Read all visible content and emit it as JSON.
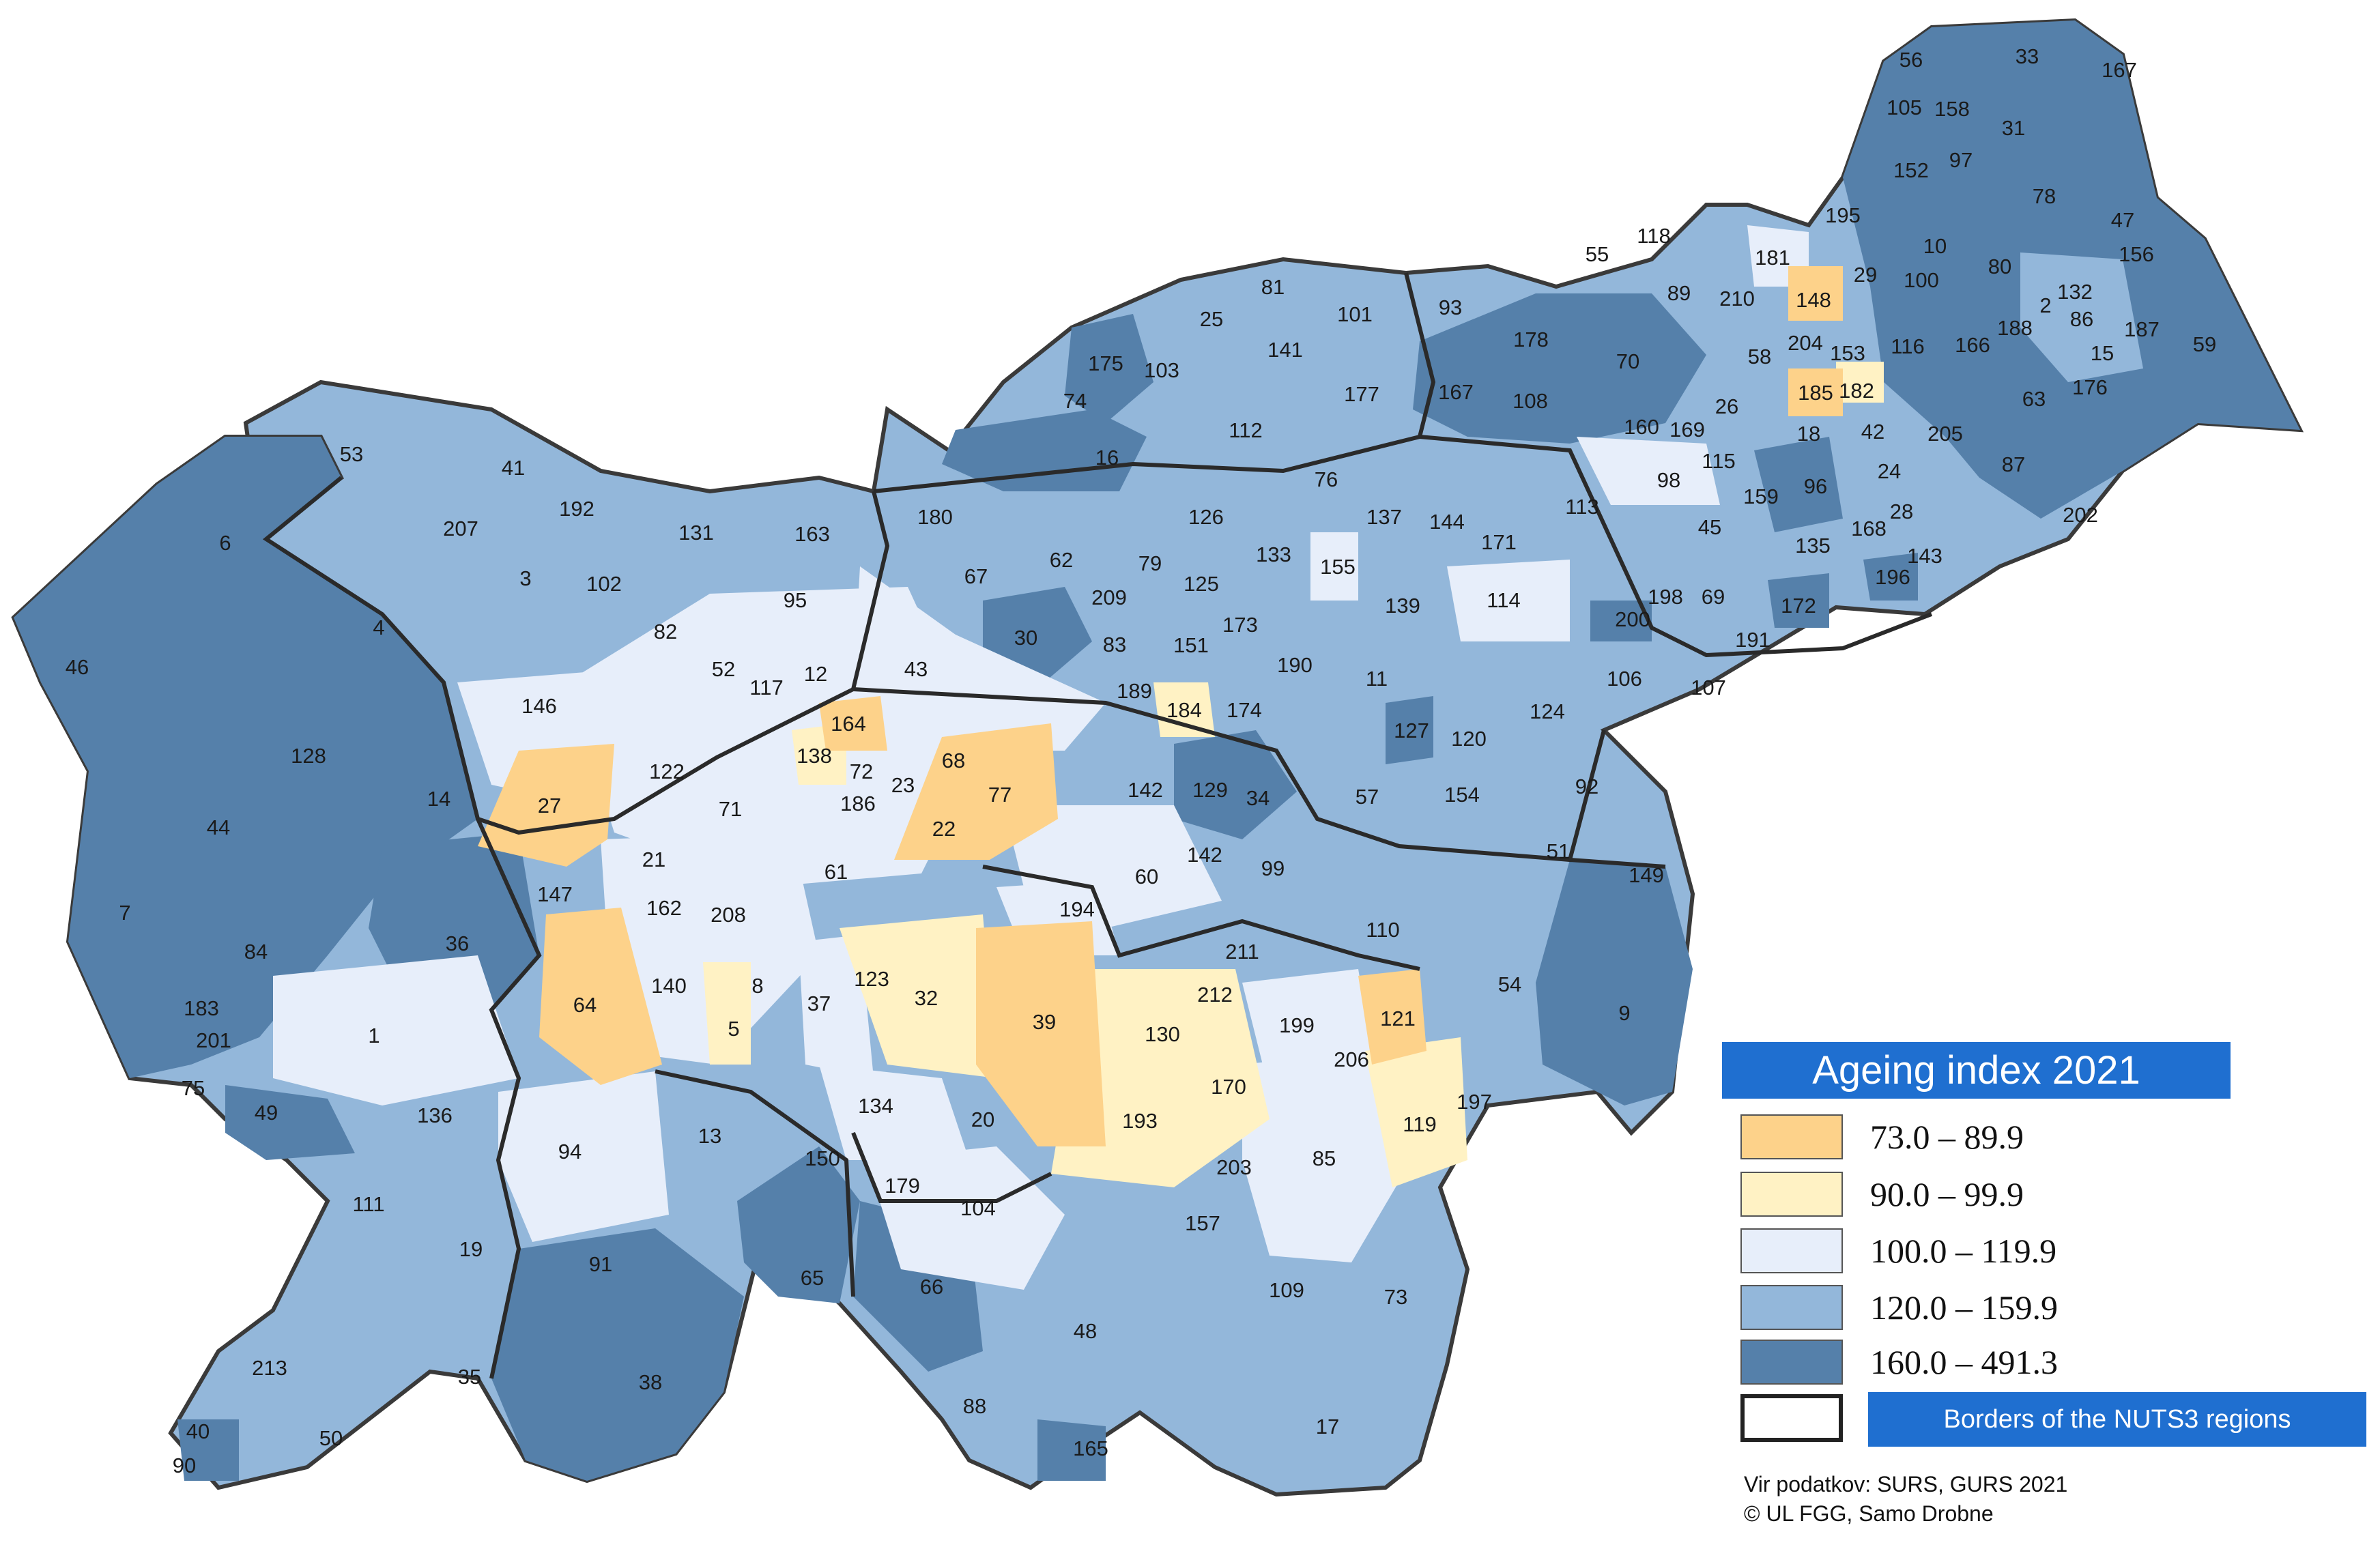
{
  "legend": {
    "title": "Ageing index 2021",
    "classes": [
      {
        "label": "73.0 – 89.9",
        "color": "#fdd28a"
      },
      {
        "label": "90.0 – 99.9",
        "color": "#fff2c4"
      },
      {
        "label": "100.0 – 119.9",
        "color": "#e7eefa"
      },
      {
        "label": "120.0 – 159.9",
        "color": "#93b7da"
      },
      {
        "label": "160.0 – 491.3",
        "color": "#5580aa"
      }
    ],
    "borders_label": "Borders of the NUTS3 regions"
  },
  "source": {
    "line1": "Vir podatkov: SURS, GURS 2021",
    "line2": "© UL FGG, Samo Drobne"
  },
  "map": {
    "country_color": "#93b7da",
    "border_color": "#3a3a3a",
    "municipalities": [
      {
        "id": "56",
        "cls": 4
      },
      {
        "id": "33",
        "cls": 4
      },
      {
        "id": "167",
        "cls": 4
      },
      {
        "id": "105",
        "cls": 3
      },
      {
        "id": "158",
        "cls": 4
      },
      {
        "id": "31",
        "cls": 4
      },
      {
        "id": "97",
        "cls": 4
      },
      {
        "id": "152",
        "cls": 4
      },
      {
        "id": "78",
        "cls": 4
      },
      {
        "id": "47",
        "cls": 4
      },
      {
        "id": "195",
        "cls": 3
      },
      {
        "id": "55",
        "cls": 3
      },
      {
        "id": "118",
        "cls": 3
      },
      {
        "id": "89",
        "cls": 4
      },
      {
        "id": "210",
        "cls": 3
      },
      {
        "id": "181",
        "cls": 2
      },
      {
        "id": "148",
        "cls": 0
      },
      {
        "id": "29",
        "cls": 4
      },
      {
        "id": "10",
        "cls": 4
      },
      {
        "id": "100",
        "cls": 4
      },
      {
        "id": "80",
        "cls": 4
      },
      {
        "id": "156",
        "cls": 4
      },
      {
        "id": "132",
        "cls": 3
      },
      {
        "id": "2",
        "cls": 3
      },
      {
        "id": "86",
        "cls": 3
      },
      {
        "id": "187",
        "cls": 4
      },
      {
        "id": "15",
        "cls": 3
      },
      {
        "id": "59",
        "cls": 4
      },
      {
        "id": "188",
        "cls": 4
      },
      {
        "id": "166",
        "cls": 4
      },
      {
        "id": "116",
        "cls": 3
      },
      {
        "id": "176",
        "cls": 3
      },
      {
        "id": "63",
        "cls": 4
      },
      {
        "id": "81",
        "cls": 3
      },
      {
        "id": "101",
        "cls": 3
      },
      {
        "id": "93",
        "cls": 4
      },
      {
        "id": "178",
        "cls": 4
      },
      {
        "id": "70",
        "cls": 4
      },
      {
        "id": "58",
        "cls": 3
      },
      {
        "id": "204",
        "cls": 3
      },
      {
        "id": "153",
        "cls": 2
      },
      {
        "id": "185",
        "cls": 0
      },
      {
        "id": "182",
        "cls": 1
      },
      {
        "id": "25",
        "cls": 3
      },
      {
        "id": "141",
        "cls": 3
      },
      {
        "id": "175",
        "cls": 4
      },
      {
        "id": "103",
        "cls": 3
      },
      {
        "id": "74",
        "cls": 4
      },
      {
        "id": "177",
        "cls": 3
      },
      {
        "id": "167b",
        "label": "167",
        "cls": 4
      },
      {
        "id": "108",
        "cls": 4
      },
      {
        "id": "26",
        "cls": 3
      },
      {
        "id": "18",
        "cls": 3
      },
      {
        "id": "42",
        "cls": 3
      },
      {
        "id": "205",
        "cls": 4
      },
      {
        "id": "87",
        "cls": 4
      },
      {
        "id": "16",
        "cls": 4
      },
      {
        "id": "112",
        "cls": 3
      },
      {
        "id": "160",
        "cls": 3
      },
      {
        "id": "169",
        "cls": 3
      },
      {
        "id": "115",
        "cls": 3
      },
      {
        "id": "98",
        "cls": 2
      },
      {
        "id": "96",
        "cls": 4
      },
      {
        "id": "24",
        "cls": 3
      },
      {
        "id": "159",
        "cls": 3
      },
      {
        "id": "202",
        "cls": 4
      },
      {
        "id": "53",
        "cls": 3
      },
      {
        "id": "41",
        "cls": 3
      },
      {
        "id": "76",
        "cls": 3
      },
      {
        "id": "113",
        "cls": 3
      },
      {
        "id": "28",
        "cls": 3
      },
      {
        "id": "168",
        "cls": 3
      },
      {
        "id": "45",
        "cls": 3
      },
      {
        "id": "135",
        "cls": 3
      },
      {
        "id": "143",
        "cls": 3
      },
      {
        "id": "192",
        "cls": 3
      },
      {
        "id": "131",
        "cls": 3
      },
      {
        "id": "163",
        "cls": 3
      },
      {
        "id": "180",
        "cls": 3
      },
      {
        "id": "126",
        "cls": 3
      },
      {
        "id": "137",
        "cls": 3
      },
      {
        "id": "144",
        "cls": 3
      },
      {
        "id": "171",
        "cls": 2
      },
      {
        "id": "207",
        "cls": 3
      },
      {
        "id": "6",
        "cls": 4
      },
      {
        "id": "3",
        "cls": 4
      },
      {
        "id": "102",
        "cls": 3
      },
      {
        "id": "95",
        "cls": 3
      },
      {
        "id": "67",
        "cls": 3
      },
      {
        "id": "62",
        "cls": 3
      },
      {
        "id": "79",
        "cls": 3
      },
      {
        "id": "133",
        "cls": 3
      },
      {
        "id": "155",
        "cls": 2
      },
      {
        "id": "125",
        "cls": 3
      },
      {
        "id": "209",
        "cls": 3
      },
      {
        "id": "196",
        "cls": 4
      },
      {
        "id": "198",
        "cls": 3
      },
      {
        "id": "69",
        "cls": 3
      },
      {
        "id": "172",
        "cls": 4
      },
      {
        "id": "139",
        "cls": 3
      },
      {
        "id": "114",
        "cls": 2
      },
      {
        "id": "200",
        "cls": 4
      },
      {
        "id": "191",
        "cls": 3
      },
      {
        "id": "4",
        "cls": 3
      },
      {
        "id": "82",
        "cls": 3
      },
      {
        "id": "30",
        "cls": 4
      },
      {
        "id": "83",
        "cls": 3
      },
      {
        "id": "151",
        "cls": 3
      },
      {
        "id": "173",
        "cls": 3
      },
      {
        "id": "190",
        "cls": 3
      },
      {
        "id": "11",
        "cls": 3
      },
      {
        "id": "106",
        "cls": 3
      },
      {
        "id": "107",
        "cls": 3
      },
      {
        "id": "46",
        "cls": 4
      },
      {
        "id": "52",
        "cls": 3
      },
      {
        "id": "12",
        "cls": 2
      },
      {
        "id": "43",
        "cls": 2
      },
      {
        "id": "117",
        "cls": 2
      },
      {
        "id": "189",
        "cls": 3
      },
      {
        "id": "184",
        "cls": 1
      },
      {
        "id": "174",
        "cls": 3
      },
      {
        "id": "124",
        "cls": 3
      },
      {
        "id": "146",
        "cls": 2
      },
      {
        "id": "164",
        "cls": 0
      },
      {
        "id": "127",
        "cls": 4
      },
      {
        "id": "128",
        "cls": 4
      },
      {
        "id": "138",
        "cls": 1
      },
      {
        "id": "120",
        "cls": 3
      },
      {
        "id": "122",
        "cls": 2
      },
      {
        "id": "72",
        "cls": 2
      },
      {
        "id": "68",
        "cls": 0
      },
      {
        "id": "186",
        "cls": 2
      },
      {
        "id": "23",
        "cls": 2
      },
      {
        "id": "77",
        "cls": 0
      },
      {
        "id": "142",
        "cls": 3
      },
      {
        "id": "129",
        "cls": 4
      },
      {
        "id": "34",
        "cls": 4
      },
      {
        "id": "92",
        "cls": 3
      },
      {
        "id": "14",
        "cls": 3
      },
      {
        "id": "27",
        "cls": 0
      },
      {
        "id": "71",
        "cls": 3
      },
      {
        "id": "154",
        "cls": 2
      },
      {
        "id": "57",
        "cls": 3
      },
      {
        "id": "22",
        "cls": 0
      },
      {
        "id": "44",
        "cls": 4
      },
      {
        "id": "61",
        "cls": 3
      },
      {
        "id": "142b",
        "label": "142",
        "cls": 3
      },
      {
        "id": "51",
        "cls": 3
      },
      {
        "id": "21",
        "cls": 2
      },
      {
        "id": "60",
        "cls": 2
      },
      {
        "id": "99",
        "cls": 3
      },
      {
        "id": "149",
        "cls": 4
      },
      {
        "id": "147",
        "cls": 2
      },
      {
        "id": "162",
        "cls": 3
      },
      {
        "id": "208",
        "cls": 4
      },
      {
        "id": "194",
        "cls": 2
      },
      {
        "id": "7",
        "cls": 4
      },
      {
        "id": "84",
        "cls": 4
      },
      {
        "id": "36",
        "cls": 4
      },
      {
        "id": "211",
        "cls": 3
      },
      {
        "id": "110",
        "cls": 3
      },
      {
        "id": "140",
        "cls": 2
      },
      {
        "id": "8",
        "cls": 2
      },
      {
        "id": "123",
        "cls": 1
      },
      {
        "id": "32",
        "cls": 1
      },
      {
        "id": "212",
        "cls": 2
      },
      {
        "id": "54",
        "cls": 3
      },
      {
        "id": "183",
        "cls": 3
      },
      {
        "id": "64",
        "cls": 0
      },
      {
        "id": "37",
        "cls": 2
      },
      {
        "id": "39",
        "cls": 0
      },
      {
        "id": "199",
        "cls": 2
      },
      {
        "id": "121",
        "cls": 0
      },
      {
        "id": "9",
        "cls": 4
      },
      {
        "id": "1",
        "cls": 2
      },
      {
        "id": "201",
        "cls": 4
      },
      {
        "id": "5",
        "cls": 1
      },
      {
        "id": "130",
        "cls": 1
      },
      {
        "id": "206",
        "cls": 2
      },
      {
        "id": "75",
        "cls": 3
      },
      {
        "id": "170",
        "cls": 1
      },
      {
        "id": "134",
        "cls": 2
      },
      {
        "id": "49",
        "cls": 4
      },
      {
        "id": "136",
        "cls": 3
      },
      {
        "id": "197",
        "cls": 3
      },
      {
        "id": "119",
        "cls": 1
      },
      {
        "id": "20",
        "cls": 3
      },
      {
        "id": "193",
        "cls": 1
      },
      {
        "id": "94",
        "cls": 2
      },
      {
        "id": "13",
        "cls": 3
      },
      {
        "id": "150",
        "cls": 3
      },
      {
        "id": "203",
        "cls": 3
      },
      {
        "id": "85",
        "cls": 2
      },
      {
        "id": "179",
        "cls": 2
      },
      {
        "id": "111",
        "cls": 3
      },
      {
        "id": "104",
        "cls": 2
      },
      {
        "id": "157",
        "cls": 3
      },
      {
        "id": "19",
        "cls": 3
      },
      {
        "id": "91",
        "cls": 3
      },
      {
        "id": "65",
        "cls": 4
      },
      {
        "id": "66",
        "cls": 4
      },
      {
        "id": "109",
        "cls": 3
      },
      {
        "id": "73",
        "cls": 3
      },
      {
        "id": "48",
        "cls": 3
      },
      {
        "id": "38",
        "cls": 4
      },
      {
        "id": "35",
        "cls": 3
      },
      {
        "id": "213",
        "cls": 3
      },
      {
        "id": "17",
        "cls": 3
      },
      {
        "id": "50",
        "cls": 3
      },
      {
        "id": "40",
        "cls": 4
      },
      {
        "id": "88",
        "cls": 4
      },
      {
        "id": "165",
        "cls": 4
      },
      {
        "id": "90",
        "cls": 4
      }
    ]
  }
}
